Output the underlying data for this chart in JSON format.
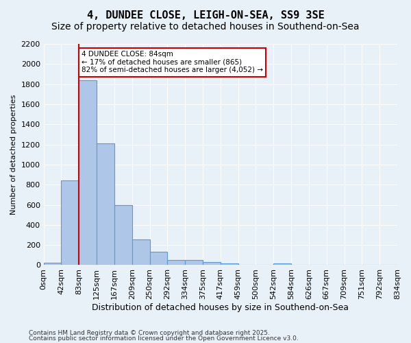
{
  "title": "4, DUNDEE CLOSE, LEIGH-ON-SEA, SS9 3SE",
  "subtitle": "Size of property relative to detached houses in Southend-on-Sea",
  "xlabel": "Distribution of detached houses by size in Southend-on-Sea",
  "ylabel": "Number of detached properties",
  "bin_labels": [
    "0sqm",
    "42sqm",
    "83sqm",
    "125sqm",
    "167sqm",
    "209sqm",
    "250sqm",
    "292sqm",
    "334sqm",
    "375sqm",
    "417sqm",
    "459sqm",
    "500sqm",
    "542sqm",
    "584sqm",
    "626sqm",
    "667sqm",
    "709sqm",
    "751sqm",
    "792sqm",
    "834sqm"
  ],
  "bar_heights": [
    25,
    840,
    1840,
    1210,
    600,
    255,
    130,
    50,
    50,
    30,
    15,
    0,
    0,
    18,
    0,
    0,
    0,
    0,
    0,
    0
  ],
  "bar_color": "#aec6e8",
  "bar_edge_color": "#5b9bd5",
  "annotation_text": "4 DUNDEE CLOSE: 84sqm\n← 17% of detached houses are smaller (865)\n82% of semi-detached houses are larger (4,052) →",
  "annotation_box_color": "#ffffff",
  "annotation_box_edge": "#cc0000",
  "ylim": [
    0,
    2200
  ],
  "yticks": [
    0,
    200,
    400,
    600,
    800,
    1000,
    1200,
    1400,
    1600,
    1800,
    2000,
    2200
  ],
  "footer1": "Contains HM Land Registry data © Crown copyright and database right 2025.",
  "footer2": "Contains public sector information licensed under the Open Government Licence v3.0.",
  "title_fontsize": 11,
  "subtitle_fontsize": 10,
  "bg_color": "#e8f0f8",
  "plot_bg_color": "#e8f0f8"
}
